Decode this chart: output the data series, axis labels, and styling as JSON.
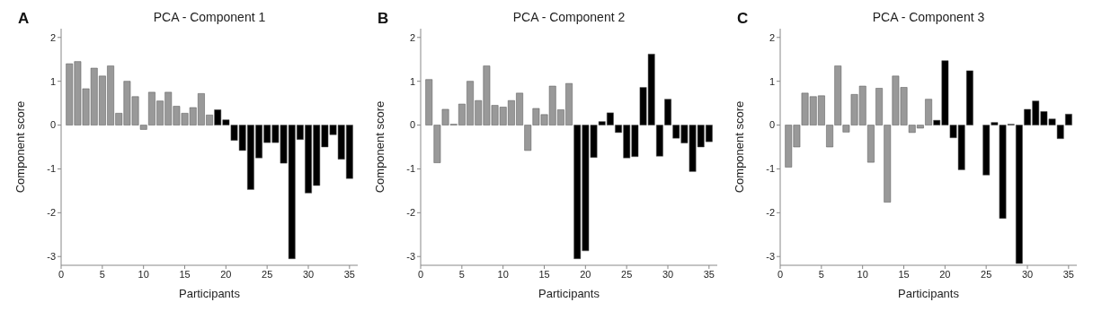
{
  "chart_data": [
    {
      "type": "bar",
      "title": "PCA - Component 1",
      "xlabel": "Participants",
      "ylabel": "Component score",
      "annotations": [
        "A"
      ],
      "x": [
        1,
        2,
        3,
        4,
        5,
        6,
        7,
        8,
        9,
        10,
        11,
        12,
        13,
        14,
        15,
        16,
        17,
        18,
        19,
        20,
        21,
        22,
        23,
        24,
        25,
        26,
        27,
        28,
        29,
        30,
        31,
        32,
        33,
        34,
        35
      ],
      "values": [
        1.4,
        1.45,
        0.83,
        1.3,
        1.12,
        1.35,
        0.27,
        1.0,
        0.65,
        -0.1,
        0.75,
        0.55,
        0.75,
        0.43,
        0.27,
        0.4,
        0.72,
        0.23,
        0.35,
        0.12,
        -0.35,
        -0.58,
        -1.47,
        -0.75,
        -0.4,
        -0.4,
        -0.87,
        -3.05,
        -0.33,
        -1.55,
        -1.38,
        -0.5,
        -0.22,
        -0.78,
        -1.22
      ],
      "colors": [
        "#999999",
        "#999999",
        "#999999",
        "#999999",
        "#999999",
        "#999999",
        "#999999",
        "#999999",
        "#999999",
        "#999999",
        "#999999",
        "#999999",
        "#999999",
        "#999999",
        "#999999",
        "#999999",
        "#999999",
        "#999999",
        "#000000",
        "#000000",
        "#000000",
        "#000000",
        "#000000",
        "#000000",
        "#000000",
        "#000000",
        "#000000",
        "#000000",
        "#000000",
        "#000000",
        "#000000",
        "#000000",
        "#000000",
        "#000000",
        "#000000"
      ],
      "xlim": [
        0,
        36
      ],
      "xticks": [
        0,
        5,
        10,
        15,
        20,
        25,
        30,
        35
      ],
      "ylim": [
        -3.2,
        2.2
      ],
      "yticks": [
        -3,
        -2,
        -1,
        0,
        1,
        2
      ]
    },
    {
      "type": "bar",
      "title": "PCA - Component 2",
      "xlabel": "Participants",
      "ylabel": "Component score",
      "annotations": [
        "B"
      ],
      "x": [
        1,
        2,
        3,
        4,
        5,
        6,
        7,
        8,
        9,
        10,
        11,
        12,
        13,
        14,
        15,
        16,
        17,
        18,
        19,
        20,
        21,
        22,
        23,
        24,
        25,
        26,
        27,
        28,
        29,
        30,
        31,
        32,
        33,
        34,
        35
      ],
      "values": [
        1.04,
        -0.86,
        0.36,
        0.02,
        0.48,
        1.0,
        0.56,
        1.35,
        0.45,
        0.41,
        0.56,
        0.73,
        -0.58,
        0.38,
        0.24,
        0.89,
        0.35,
        0.95,
        -3.05,
        -2.87,
        -0.74,
        0.08,
        0.28,
        -0.17,
        -0.75,
        -0.72,
        0.86,
        1.62,
        -0.71,
        0.59,
        -0.3,
        -0.41,
        -1.06,
        -0.5,
        -0.38
      ],
      "colors": [
        "#999999",
        "#999999",
        "#999999",
        "#999999",
        "#999999",
        "#999999",
        "#999999",
        "#999999",
        "#999999",
        "#999999",
        "#999999",
        "#999999",
        "#999999",
        "#999999",
        "#999999",
        "#999999",
        "#999999",
        "#999999",
        "#000000",
        "#000000",
        "#000000",
        "#000000",
        "#000000",
        "#000000",
        "#000000",
        "#000000",
        "#000000",
        "#000000",
        "#000000",
        "#000000",
        "#000000",
        "#000000",
        "#000000",
        "#000000",
        "#000000"
      ],
      "xlim": [
        0,
        36
      ],
      "xticks": [
        0,
        5,
        10,
        15,
        20,
        25,
        30,
        35
      ],
      "ylim": [
        -3.2,
        2.2
      ],
      "yticks": [
        -3,
        -2,
        -1,
        0,
        1,
        2
      ]
    },
    {
      "type": "bar",
      "title": "PCA - Component 3",
      "xlabel": "Participants",
      "ylabel": "Component score",
      "annotations": [
        "C"
      ],
      "x": [
        1,
        2,
        3,
        4,
        5,
        6,
        7,
        8,
        9,
        10,
        11,
        12,
        13,
        14,
        15,
        16,
        17,
        18,
        19,
        20,
        21,
        22,
        23,
        24,
        25,
        26,
        27,
        28,
        29,
        30,
        31,
        32,
        33,
        34,
        35
      ],
      "values": [
        -0.96,
        -0.5,
        0.73,
        0.65,
        0.67,
        -0.5,
        1.35,
        -0.16,
        0.7,
        0.89,
        -0.85,
        0.84,
        -1.76,
        1.12,
        0.86,
        -0.17,
        -0.07,
        0.59,
        0.11,
        1.47,
        -0.29,
        -1.02,
        1.24,
        0,
        -1.14,
        0.06,
        -2.13,
        0.02,
        -3.16,
        0.36,
        0.55,
        0.31,
        0.14,
        -0.31,
        0.25
      ],
      "colors": [
        "#999999",
        "#999999",
        "#999999",
        "#999999",
        "#999999",
        "#999999",
        "#999999",
        "#999999",
        "#999999",
        "#999999",
        "#999999",
        "#999999",
        "#999999",
        "#999999",
        "#999999",
        "#999999",
        "#999999",
        "#999999",
        "#000000",
        "#000000",
        "#000000",
        "#000000",
        "#000000",
        "#000000",
        "#000000",
        "#000000",
        "#000000",
        "#000000",
        "#000000",
        "#000000",
        "#000000",
        "#000000",
        "#000000",
        "#000000",
        "#000000"
      ],
      "xlim": [
        0,
        36
      ],
      "xticks": [
        0,
        5,
        10,
        15,
        20,
        25,
        30,
        35
      ],
      "ylim": [
        -3.2,
        2.2
      ],
      "yticks": [
        -3,
        -2,
        -1,
        0,
        1,
        2
      ]
    }
  ]
}
